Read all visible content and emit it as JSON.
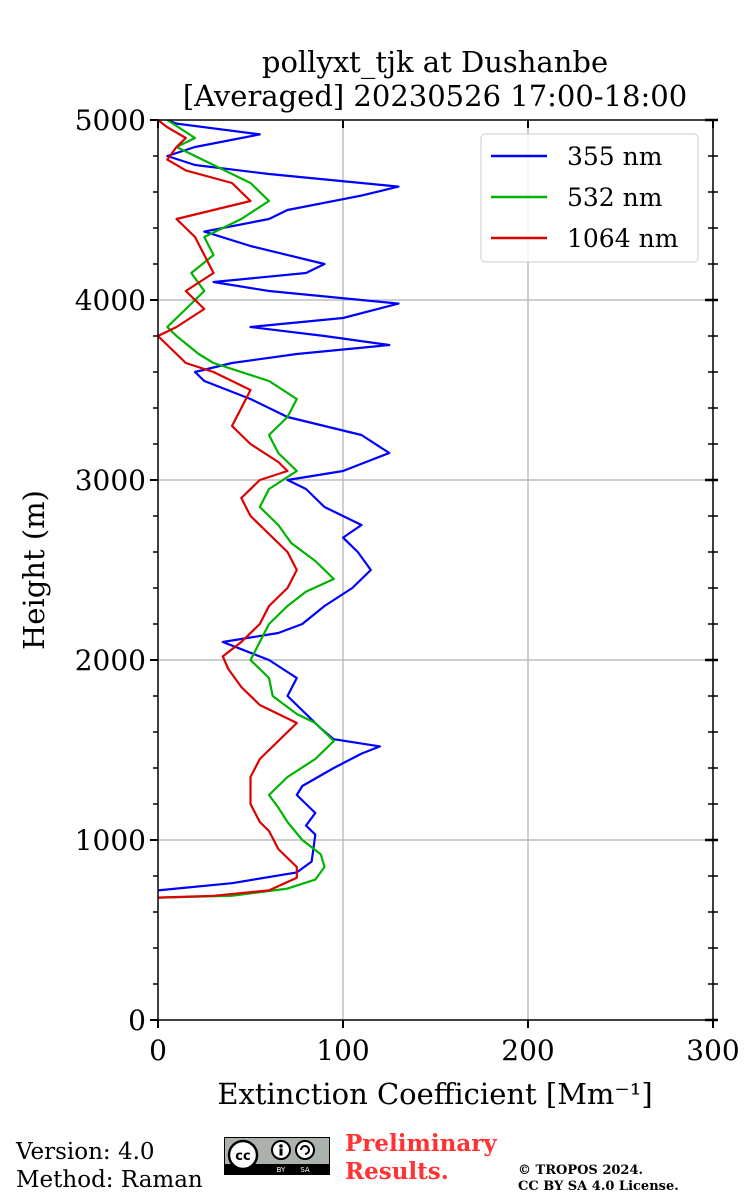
{
  "chart_data": {
    "type": "line",
    "title": "pollyxt_tjk at Dushanbe",
    "subtitle": "[Averaged] 20230526 17:00-18:00",
    "xlabel": "Extinction Coefficient [Mm⁻¹]",
    "ylabel": "Height (m)",
    "xlim": [
      0,
      300
    ],
    "ylim": [
      0,
      5000
    ],
    "xticks": [
      0,
      100,
      200,
      300
    ],
    "yticks": [
      0,
      1000,
      2000,
      3000,
      4000,
      5000
    ],
    "grid": true,
    "legend_position": "top-right",
    "series": [
      {
        "name": "355 nm",
        "color": "#0000ff",
        "points": [
          [
            0,
            720
          ],
          [
            40,
            760
          ],
          [
            75,
            820
          ],
          [
            83,
            880
          ],
          [
            84,
            950
          ],
          [
            85,
            1030
          ],
          [
            80,
            1080
          ],
          [
            85,
            1150
          ],
          [
            75,
            1250
          ],
          [
            78,
            1300
          ],
          [
            95,
            1400
          ],
          [
            110,
            1480
          ],
          [
            120,
            1520
          ],
          [
            95,
            1560
          ],
          [
            88,
            1620
          ],
          [
            80,
            1700
          ],
          [
            70,
            1800
          ],
          [
            75,
            1900
          ],
          [
            60,
            2000
          ],
          [
            45,
            2060
          ],
          [
            35,
            2100
          ],
          [
            65,
            2150
          ],
          [
            78,
            2200
          ],
          [
            90,
            2300
          ],
          [
            105,
            2400
          ],
          [
            115,
            2500
          ],
          [
            108,
            2600
          ],
          [
            100,
            2680
          ],
          [
            110,
            2750
          ],
          [
            90,
            2850
          ],
          [
            80,
            2950
          ],
          [
            70,
            3000
          ],
          [
            100,
            3050
          ],
          [
            125,
            3150
          ],
          [
            110,
            3250
          ],
          [
            70,
            3350
          ],
          [
            50,
            3450
          ],
          [
            25,
            3550
          ],
          [
            20,
            3600
          ],
          [
            40,
            3650
          ],
          [
            75,
            3700
          ],
          [
            125,
            3750
          ],
          [
            90,
            3800
          ],
          [
            50,
            3850
          ],
          [
            100,
            3900
          ],
          [
            130,
            3980
          ],
          [
            60,
            4050
          ],
          [
            30,
            4100
          ],
          [
            80,
            4150
          ],
          [
            90,
            4200
          ],
          [
            50,
            4300
          ],
          [
            25,
            4380
          ],
          [
            60,
            4450
          ],
          [
            70,
            4500
          ],
          [
            110,
            4580
          ],
          [
            130,
            4630
          ],
          [
            60,
            4700
          ],
          [
            20,
            4750
          ],
          [
            5,
            4800
          ],
          [
            20,
            4850
          ],
          [
            55,
            4920
          ],
          [
            10,
            4980
          ],
          [
            5,
            5000
          ]
        ]
      },
      {
        "name": "532 nm",
        "color": "#00b300",
        "points": [
          [
            0,
            680
          ],
          [
            40,
            690
          ],
          [
            70,
            730
          ],
          [
            85,
            780
          ],
          [
            90,
            850
          ],
          [
            88,
            920
          ],
          [
            78,
            1000
          ],
          [
            70,
            1100
          ],
          [
            65,
            1180
          ],
          [
            60,
            1250
          ],
          [
            70,
            1350
          ],
          [
            85,
            1450
          ],
          [
            95,
            1550
          ],
          [
            85,
            1650
          ],
          [
            75,
            1700
          ],
          [
            62,
            1800
          ],
          [
            60,
            1900
          ],
          [
            50,
            2000
          ],
          [
            55,
            2100
          ],
          [
            60,
            2200
          ],
          [
            70,
            2300
          ],
          [
            80,
            2380
          ],
          [
            95,
            2450
          ],
          [
            85,
            2550
          ],
          [
            72,
            2650
          ],
          [
            65,
            2750
          ],
          [
            55,
            2850
          ],
          [
            60,
            2950
          ],
          [
            75,
            3050
          ],
          [
            65,
            3150
          ],
          [
            60,
            3250
          ],
          [
            70,
            3350
          ],
          [
            75,
            3450
          ],
          [
            60,
            3550
          ],
          [
            30,
            3650
          ],
          [
            22,
            3700
          ],
          [
            10,
            3800
          ],
          [
            5,
            3850
          ],
          [
            15,
            3950
          ],
          [
            25,
            4050
          ],
          [
            18,
            4150
          ],
          [
            30,
            4250
          ],
          [
            25,
            4350
          ],
          [
            45,
            4450
          ],
          [
            60,
            4550
          ],
          [
            50,
            4650
          ],
          [
            30,
            4750
          ],
          [
            10,
            4850
          ],
          [
            20,
            4900
          ],
          [
            5,
            5000
          ]
        ]
      },
      {
        "name": "1064 nm",
        "color": "#dd0000",
        "points": [
          [
            0,
            680
          ],
          [
            30,
            690
          ],
          [
            60,
            720
          ],
          [
            75,
            790
          ],
          [
            75,
            850
          ],
          [
            70,
            900
          ],
          [
            65,
            950
          ],
          [
            60,
            1050
          ],
          [
            55,
            1100
          ],
          [
            50,
            1200
          ],
          [
            50,
            1350
          ],
          [
            55,
            1450
          ],
          [
            65,
            1550
          ],
          [
            75,
            1650
          ],
          [
            65,
            1700
          ],
          [
            55,
            1750
          ],
          [
            45,
            1850
          ],
          [
            38,
            1950
          ],
          [
            35,
            2020
          ],
          [
            45,
            2100
          ],
          [
            55,
            2200
          ],
          [
            60,
            2300
          ],
          [
            70,
            2400
          ],
          [
            75,
            2500
          ],
          [
            70,
            2600
          ],
          [
            60,
            2700
          ],
          [
            50,
            2800
          ],
          [
            45,
            2900
          ],
          [
            55,
            3000
          ],
          [
            70,
            3050
          ],
          [
            65,
            3100
          ],
          [
            50,
            3200
          ],
          [
            40,
            3300
          ],
          [
            45,
            3400
          ],
          [
            50,
            3500
          ],
          [
            30,
            3600
          ],
          [
            15,
            3650
          ],
          [
            5,
            3750
          ],
          [
            0,
            3800
          ],
          [
            10,
            3850
          ],
          [
            25,
            3950
          ],
          [
            15,
            4050
          ],
          [
            30,
            4150
          ],
          [
            25,
            4250
          ],
          [
            20,
            4350
          ],
          [
            10,
            4450
          ],
          [
            30,
            4500
          ],
          [
            50,
            4550
          ],
          [
            40,
            4650
          ],
          [
            15,
            4720
          ],
          [
            5,
            4780
          ],
          [
            10,
            4850
          ],
          [
            15,
            4900
          ],
          [
            5,
            4960
          ],
          [
            0,
            5000
          ]
        ]
      }
    ]
  },
  "footer": {
    "version": "Version: 4.0",
    "method": "Method: Raman",
    "preliminary_line1": "Preliminary",
    "preliminary_line2": "Results.",
    "copyright_line1": "© TROPOS 2024.",
    "copyright_line2": "CC BY SA 4.0 License.",
    "cc_badge": {
      "by": "BY",
      "sa": "SA",
      "cc": "cc"
    },
    "preliminary_color": "#ff3333"
  }
}
